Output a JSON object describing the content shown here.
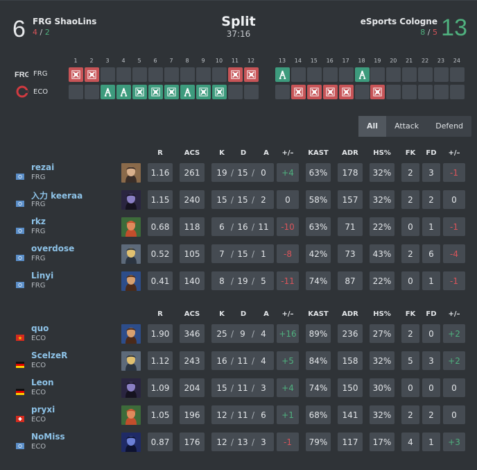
{
  "header": {
    "team1": {
      "score": "6",
      "name": "FRG ShaoLins",
      "half1": "4",
      "sep": "/",
      "half2": "2"
    },
    "team2": {
      "score": "13",
      "name": "eSports Cologne",
      "half1": "8",
      "sep": "/",
      "half2": "5"
    },
    "map": "Split",
    "duration": "37:16"
  },
  "rounds": {
    "numbers": [
      "1",
      "2",
      "3",
      "4",
      "5",
      "6",
      "7",
      "8",
      "9",
      "10",
      "11",
      "12",
      "13",
      "14",
      "15",
      "16",
      "17",
      "18",
      "19",
      "20",
      "21",
      "22",
      "23",
      "24"
    ],
    "team1_tag": "FRG",
    "team2_tag": "ECO",
    "team1": [
      "red-x",
      "red-x",
      "",
      "",
      "",
      "",
      "",
      "",
      "",
      "",
      "red-x",
      "red-x",
      "green-a",
      "",
      "",
      "",
      "",
      "green-a",
      "",
      "",
      "",
      "",
      "",
      ""
    ],
    "team2": [
      "",
      "",
      "green-a",
      "green-a",
      "green-x",
      "green-x",
      "green-x",
      "green-a",
      "green-x",
      "green-x",
      "",
      "",
      "",
      "red-x",
      "red-x",
      "red-x",
      "red-x",
      "",
      "red-x",
      "",
      "",
      "",
      "",
      ""
    ]
  },
  "filter": {
    "all": "All",
    "attack": "Attack",
    "defend": "Defend"
  },
  "columns": [
    "R",
    "ACS",
    "K",
    "D",
    "A",
    "+/–",
    "KAST",
    "ADR",
    "HS%",
    "FK",
    "FD",
    "+/–"
  ],
  "sep": "/",
  "team1_players": [
    {
      "name": "rezai",
      "team": "FRG",
      "flag": "un",
      "agent": "brimstone",
      "r": "1.16",
      "acs": "261",
      "k": "19",
      "d": "15",
      "a": "0",
      "pm": "+4",
      "kast": "63%",
      "adr": "178",
      "hs": "32%",
      "fk": "2",
      "fd": "3",
      "fpm": "-1"
    },
    {
      "name": "入力 keeraa",
      "team": "FRG",
      "flag": "un",
      "agent": "omen",
      "r": "1.15",
      "acs": "240",
      "k": "15",
      "d": "15",
      "a": "2",
      "pm": "0",
      "kast": "58%",
      "adr": "157",
      "hs": "32%",
      "fk": "2",
      "fd": "2",
      "fpm": "0"
    },
    {
      "name": "rkz",
      "team": "FRG",
      "flag": "un",
      "agent": "skye",
      "r": "0.68",
      "acs": "118",
      "k": "6",
      "d": "16",
      "a": "11",
      "pm": "-10",
      "kast": "63%",
      "adr": "71",
      "hs": "22%",
      "fk": "0",
      "fd": "1",
      "fpm": "-1"
    },
    {
      "name": "overdose",
      "team": "FRG",
      "flag": "un",
      "agent": "killjoy",
      "r": "0.52",
      "acs": "105",
      "k": "7",
      "d": "15",
      "a": "1",
      "pm": "-8",
      "kast": "42%",
      "adr": "73",
      "hs": "43%",
      "fk": "2",
      "fd": "6",
      "fpm": "-4"
    },
    {
      "name": "Linyi",
      "team": "FRG",
      "flag": "un",
      "agent": "raze",
      "r": "0.41",
      "acs": "140",
      "k": "8",
      "d": "19",
      "a": "5",
      "pm": "-11",
      "kast": "74%",
      "adr": "87",
      "hs": "22%",
      "fk": "0",
      "fd": "1",
      "fpm": "-1"
    }
  ],
  "team2_players": [
    {
      "name": "quo",
      "team": "ECO",
      "flag": "vn",
      "agent": "raze",
      "r": "1.90",
      "acs": "346",
      "k": "25",
      "d": "9",
      "a": "4",
      "pm": "+16",
      "kast": "89%",
      "adr": "236",
      "hs": "27%",
      "fk": "2",
      "fd": "0",
      "fpm": "+2"
    },
    {
      "name": "ScelzeR",
      "team": "ECO",
      "flag": "de",
      "agent": "killjoy",
      "r": "1.12",
      "acs": "243",
      "k": "16",
      "d": "11",
      "a": "4",
      "pm": "+5",
      "kast": "84%",
      "adr": "158",
      "hs": "32%",
      "fk": "5",
      "fd": "3",
      "fpm": "+2"
    },
    {
      "name": "Leon",
      "team": "ECO",
      "flag": "de",
      "agent": "omen",
      "r": "1.09",
      "acs": "204",
      "k": "15",
      "d": "11",
      "a": "3",
      "pm": "+4",
      "kast": "74%",
      "adr": "150",
      "hs": "30%",
      "fk": "0",
      "fd": "0",
      "fpm": "0"
    },
    {
      "name": "pryxi",
      "team": "ECO",
      "flag": "ch",
      "agent": "skye",
      "r": "1.05",
      "acs": "196",
      "k": "12",
      "d": "11",
      "a": "6",
      "pm": "+1",
      "kast": "68%",
      "adr": "141",
      "hs": "32%",
      "fk": "2",
      "fd": "2",
      "fpm": "0"
    },
    {
      "name": "NoMiss",
      "team": "ECO",
      "flag": "un",
      "agent": "yoru",
      "r": "0.87",
      "acs": "176",
      "k": "12",
      "d": "13",
      "a": "3",
      "pm": "-1",
      "kast": "79%",
      "adr": "117",
      "hs": "17%",
      "fk": "4",
      "fd": "1",
      "fpm": "+3"
    }
  ],
  "colors": {
    "background": "#2f3337",
    "cell": "#454b52",
    "positive": "#4fb07e",
    "negative": "#d9545a",
    "round_red": "#c75457",
    "round_green": "#3d9b7d",
    "player_name": "#8ec3e8"
  }
}
